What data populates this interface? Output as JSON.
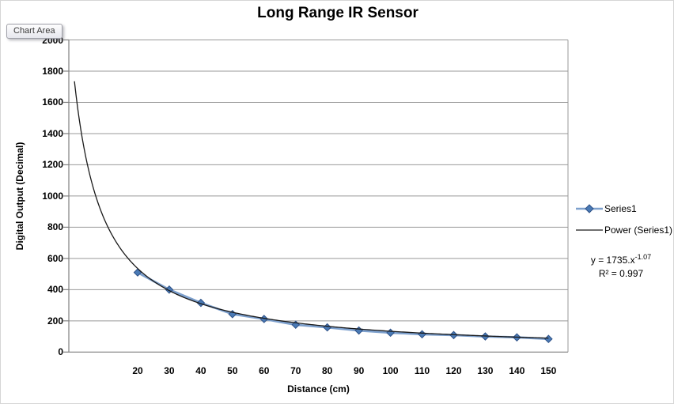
{
  "tooltip": {
    "label": "Chart Area"
  },
  "chart_data": {
    "type": "line",
    "title": "Long Range IR Sensor",
    "xlabel": "Distance (cm)",
    "ylabel": "Digital Output (Decimal)",
    "categories": [
      20,
      30,
      40,
      50,
      60,
      70,
      80,
      90,
      100,
      110,
      120,
      130,
      140,
      150
    ],
    "series": [
      {
        "name": "Series1",
        "values": [
          510,
          400,
          315,
          243,
          212,
          175,
          158,
          138,
          124,
          114,
          109,
          100,
          94,
          84
        ]
      }
    ],
    "trendline": {
      "label": "Power (Series1)",
      "coefficient": 1735,
      "exponent": -1.07,
      "equation_base": "y = 1735.x",
      "equation_exponent": "-1.07",
      "r_squared_text": "R² = 0.997"
    },
    "y_ticks": [
      0,
      200,
      400,
      600,
      800,
      1000,
      1200,
      1400,
      1600,
      1800,
      2000
    ],
    "ylim": [
      0,
      2000
    ],
    "grid": true,
    "legend_position": "right"
  },
  "colors": {
    "series_line": "#7da0cd",
    "marker_fill": "#4a7ab5",
    "marker_stroke": "#2e5187",
    "trendline": "#1a1a1a",
    "gridline": "#999999",
    "axis": "#7f7f7f",
    "text": "#000000"
  }
}
